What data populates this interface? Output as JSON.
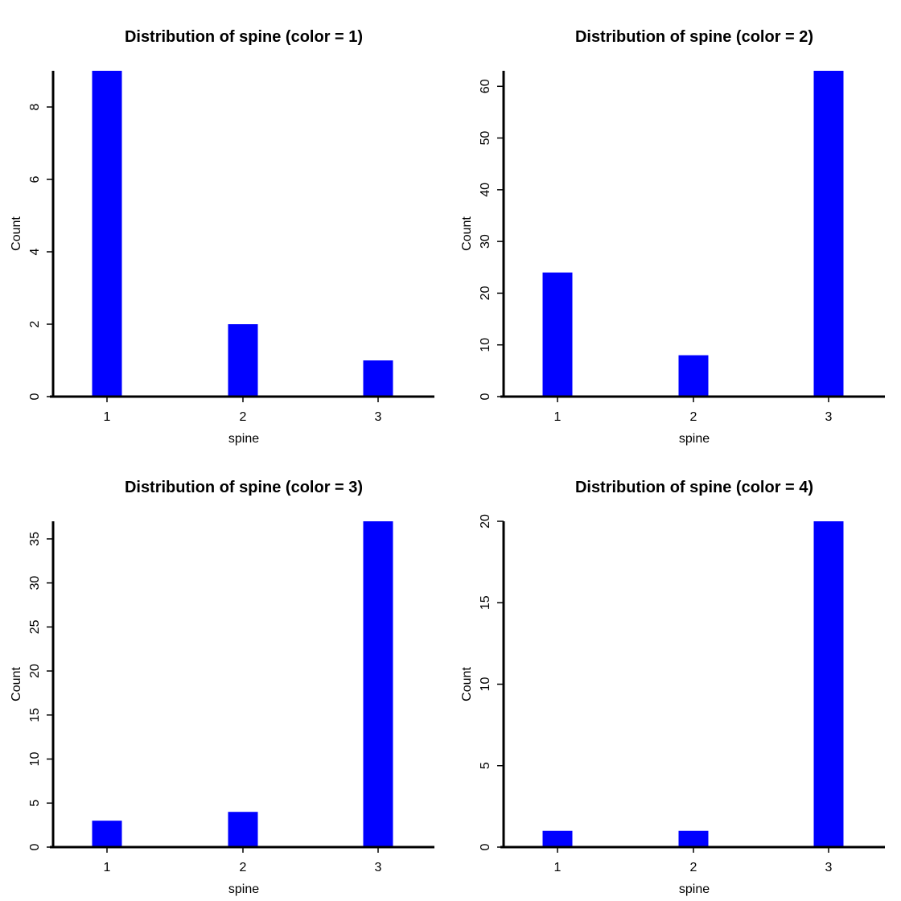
{
  "chart_data": [
    {
      "type": "bar",
      "title": "Distribution of spine (color = 1)",
      "xlabel": "spine",
      "ylabel": "Count",
      "categories": [
        "1",
        "2",
        "3"
      ],
      "values": [
        9,
        2,
        1
      ],
      "ylim": [
        0,
        9
      ],
      "yticks": [
        0,
        2,
        4,
        6,
        8
      ],
      "bar_color": "#0000ff",
      "grid": false
    },
    {
      "type": "bar",
      "title": "Distribution of spine (color = 2)",
      "xlabel": "spine",
      "ylabel": "Count",
      "categories": [
        "1",
        "2",
        "3"
      ],
      "values": [
        24,
        8,
        63
      ],
      "ylim": [
        0,
        63
      ],
      "yticks": [
        0,
        10,
        20,
        30,
        40,
        50,
        60
      ],
      "bar_color": "#0000ff",
      "grid": false
    },
    {
      "type": "bar",
      "title": "Distribution of spine (color = 3)",
      "xlabel": "spine",
      "ylabel": "Count",
      "categories": [
        "1",
        "2",
        "3"
      ],
      "values": [
        3,
        4,
        37
      ],
      "ylim": [
        0,
        37
      ],
      "yticks": [
        0,
        5,
        10,
        15,
        20,
        25,
        30,
        35
      ],
      "bar_color": "#0000ff",
      "grid": false
    },
    {
      "type": "bar",
      "title": "Distribution of spine (color = 4)",
      "xlabel": "spine",
      "ylabel": "Count",
      "categories": [
        "1",
        "2",
        "3"
      ],
      "values": [
        1,
        1,
        20
      ],
      "ylim": [
        0,
        20
      ],
      "yticks": [
        0,
        5,
        10,
        15,
        20
      ],
      "bar_color": "#0000ff",
      "grid": false
    }
  ]
}
